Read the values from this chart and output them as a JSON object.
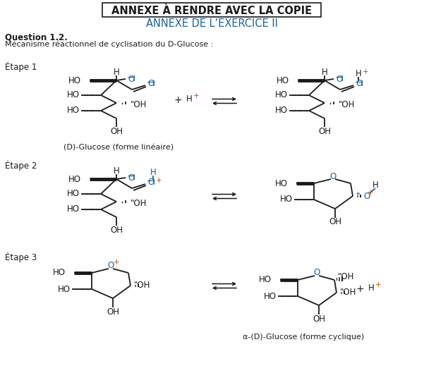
{
  "title_box": "ANNEXE À RENDRE AVEC LA COPIE",
  "subtitle": "ANNEXE DE L’EXERCICE II",
  "question": "Question 1.2.",
  "desc": "Mécanisme réactionnel de cyclisation du D-Glucose :",
  "etape1": "Étape 1",
  "etape2": "Étape 2",
  "etape3": "Étape 3",
  "label1": "(D)-Glucose (forme linéaire)",
  "label2": "α-(D)-Glucose (forme cyclique)",
  "bg_color": "#ffffff",
  "text_color": "#1a1a1a",
  "blue_color": "#1a6096",
  "orange_color": "#cc4400",
  "title_fontsize": 10.5,
  "body_fontsize": 8.5,
  "small_fontsize": 7.5
}
